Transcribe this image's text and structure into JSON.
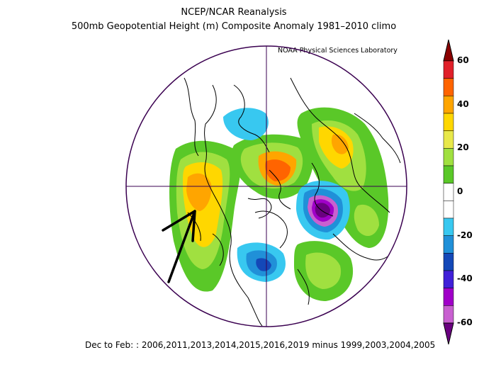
{
  "title_line1": "NCEP/NCAR Reanalysis",
  "title_line2": "500mb Geopotential Height (m) Composite Anomaly 1981–2010 climo",
  "credit": "NOAA Physical Sciences Laboratory",
  "footer": "Dec to Feb: : 2006,2011,2013,2014,2015,2016,2019 minus 1999,2003,2004,2005",
  "colorbar": {
    "labels": [
      "60",
      "40",
      "20",
      "0",
      "-20",
      "-40",
      "-60"
    ],
    "colors": [
      "#8b0000",
      "#e0202a",
      "#ff6400",
      "#ffa500",
      "#ffd700",
      "#e8e84a",
      "#a0e040",
      "#5ac828",
      "#ffffff",
      "#ffffff",
      "#38c8f0",
      "#2090d8",
      "#1448b8",
      "#4020d8",
      "#a000c8",
      "#c860d0",
      "#6a0080"
    ]
  },
  "annotation": "black-arrow"
}
